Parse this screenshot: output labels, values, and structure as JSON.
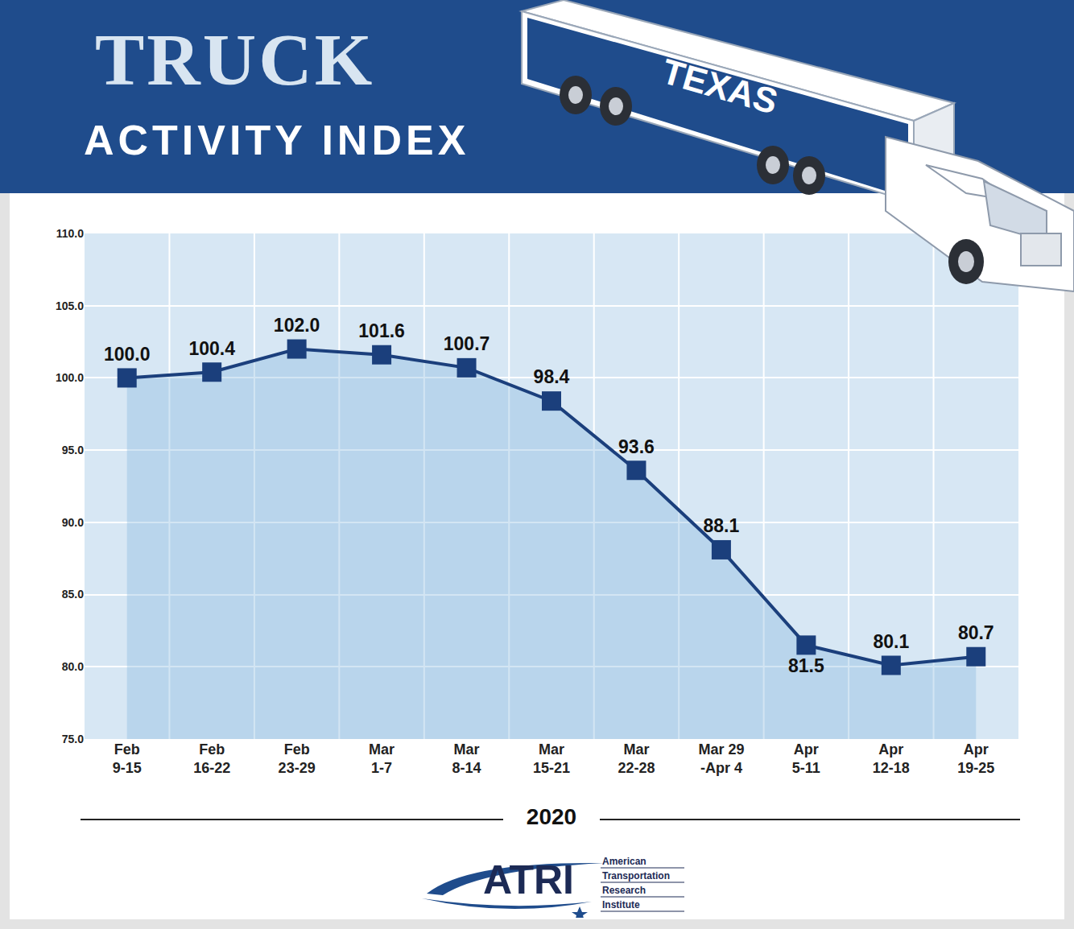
{
  "chart_data": {
    "type": "line",
    "title": "TRUCK",
    "subtitle": "ACTIVITY INDEX",
    "annotations": [
      "TEXAS"
    ],
    "x_label": "2020",
    "source": {
      "name": "ATRI",
      "full_name": [
        "American",
        "Transportation",
        "Research",
        "Institute"
      ]
    },
    "categories": [
      "Feb\n9-15",
      "Feb\n16-22",
      "Feb\n23-29",
      "Mar\n1-7",
      "Mar\n8-14",
      "Mar\n15-21",
      "Mar\n22-28",
      "Mar 29\n-Apr 4",
      "Apr\n5-11",
      "Apr\n12-18",
      "Apr\n19-25"
    ],
    "values": [
      100.0,
      100.4,
      102.0,
      101.6,
      100.7,
      98.4,
      93.6,
      88.1,
      81.5,
      80.1,
      80.7
    ],
    "value_labels": [
      "100.0",
      "100.4",
      "102.0",
      "101.6",
      "100.7",
      "98.4",
      "93.6",
      "88.1",
      "81.5",
      "80.1",
      "80.7"
    ],
    "ylim": [
      75,
      110
    ],
    "yticks": [
      {
        "value": 75,
        "label": "75.0"
      },
      {
        "value": 80,
        "label": "80.0"
      },
      {
        "value": 85,
        "label": "85.0"
      },
      {
        "value": 90,
        "label": "90.0"
      },
      {
        "value": 95,
        "label": "95.0"
      },
      {
        "value": 100,
        "label": "100.0"
      },
      {
        "value": 105,
        "label": "105.0"
      },
      {
        "value": 110,
        "label": "110.0"
      }
    ],
    "grid": true,
    "data_labels": true,
    "color": "#1b3f7c",
    "marker": "square",
    "line_style": "solid"
  }
}
